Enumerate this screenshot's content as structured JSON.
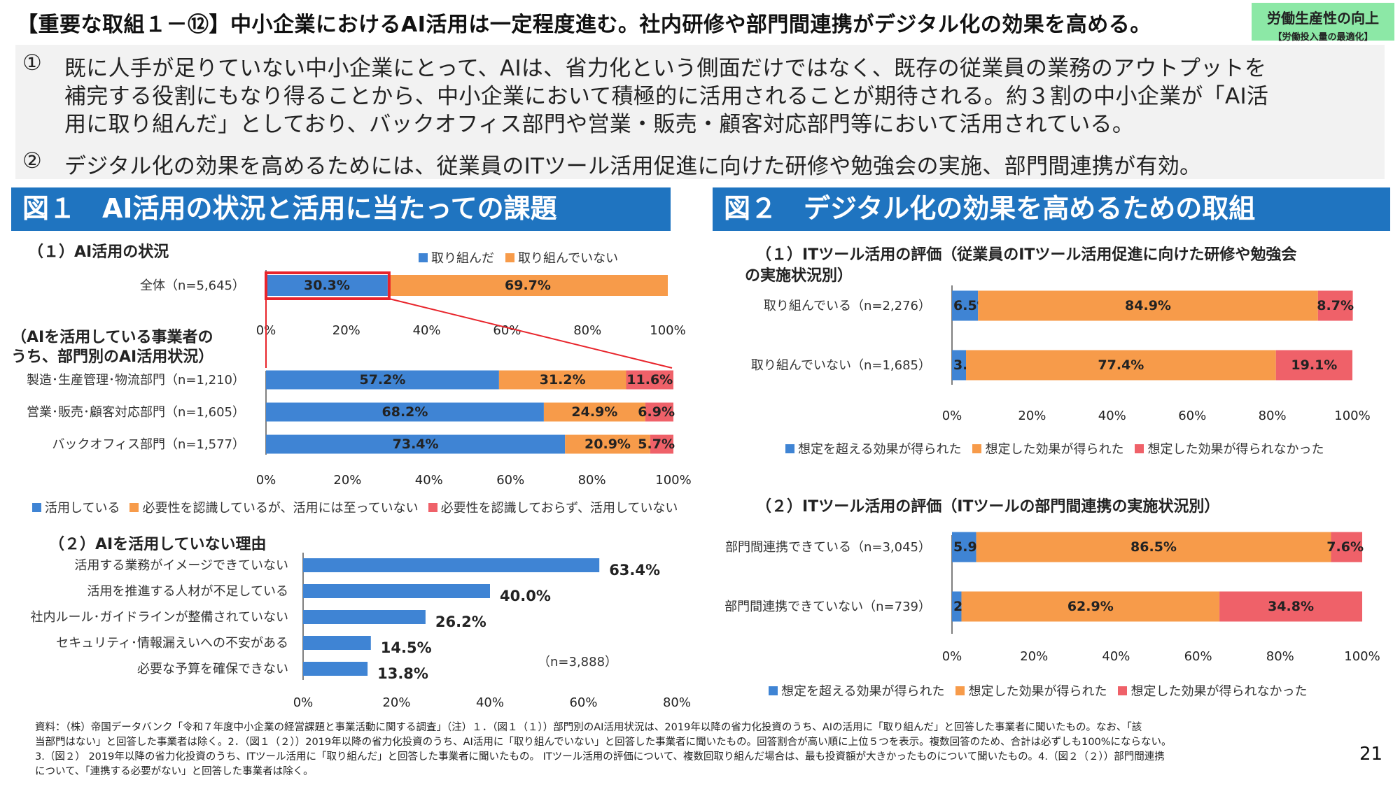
{
  "header": {
    "title": "【重要な取組１－⑫】中小企業におけるAI活用は一定程度進む。社内研修や部門間連携がデジタル化の効果を高める。",
    "badge_main": "労働生産性の向上",
    "badge_sub": "【労働投入量の最適化】"
  },
  "summary": {
    "p1_num": "①",
    "p1_lines": [
      "既に人手が足りていない中小企業にとって、AIは、省力化という側面だけではなく、既存の従業員の業務のアウトプットを",
      "補完する役割にもなり得ることから、中小企業において積極的に活用されることが期待される。約３割の中小企業が「AI活",
      "用に取り組んだ」としており、バックオフィス部門や営業・販売・顧客対応部門等において活用されている。"
    ],
    "p2_num": "②",
    "p2_line": "デジタル化の効果を高めるためには、従業員のITツール活用促進に向けた研修や勉強会の実施、部門間連携が有効。"
  },
  "fig1": {
    "heading": "図１　AI活用の状況と活用に当たっての課題",
    "sub1": "（１）AI活用の状況",
    "sub1_legend": [
      "取り組んだ",
      "取り組んでいない"
    ],
    "sub1_title2_line1": "（AIを活用している事業者の",
    "sub1_title2_line2": "うち、部門別のAI活用状況）",
    "sub1_legend2": [
      "活用している",
      "必要性を認識しているが、活用には至っていない",
      "必要性を認識しておらず、活用していない"
    ],
    "sub2": "（２）AIを活用していない理由",
    "sub2_n": "（n=3,888）"
  },
  "fig2": {
    "heading": "図２　デジタル化の効果を高めるための取組",
    "sub1_line1": "（１）ITツール活用の評価（従業員のITツール活用促進に向けた研修や勉強会",
    "sub1_line2": "の実施状況別）",
    "sub2": "（２）ITツール活用の評価（ITツールの部門間連携の実施状況別）",
    "legend": [
      "想定を超える効果が得られた",
      "想定した効果が得られた",
      "想定した効果が得られなかった"
    ]
  },
  "colors": {
    "blue": "#3f84d4",
    "orange": "#f79b4a",
    "red": "#ef6169",
    "header_blue": "#1f74c0",
    "badge_green": "#8ce8a6",
    "highlight": "#e8242b"
  },
  "chart_data": [
    {
      "id": "ai_overall",
      "type": "bar",
      "orientation": "horizontal-stacked",
      "categories": [
        "全体（n=5,645）"
      ],
      "series": [
        {
          "name": "取り組んだ",
          "values": [
            30.3
          ]
        },
        {
          "name": "取り組んでいない",
          "values": [
            69.7
          ]
        }
      ],
      "xlim": [
        0,
        100
      ],
      "ticks": [
        "0%",
        "20%",
        "40%",
        "60%",
        "80%",
        "100%"
      ]
    },
    {
      "id": "ai_by_department",
      "type": "bar",
      "orientation": "horizontal-stacked",
      "categories": [
        "製造･生産管理･物流部門（n=1,210）",
        "営業･販売･顧客対応部門（n=1,605）",
        "バックオフィス部門（n=1,577）"
      ],
      "series": [
        {
          "name": "活用している",
          "values": [
            57.2,
            68.2,
            73.4
          ]
        },
        {
          "name": "必要性を認識しているが、活用には至っていない",
          "values": [
            31.2,
            24.9,
            20.9
          ]
        },
        {
          "name": "必要性を認識しておらず、活用していない",
          "values": [
            11.6,
            6.9,
            5.7
          ]
        }
      ],
      "xlim": [
        0,
        100
      ],
      "ticks": [
        "0%",
        "20%",
        "40%",
        "60%",
        "80%",
        "100%"
      ]
    },
    {
      "id": "ai_not_used_reasons",
      "type": "bar",
      "orientation": "horizontal",
      "categories": [
        "活用する業務がイメージできていない",
        "活用を推進する人材が不足している",
        "社内ルール･ガイドラインが整備されていない",
        "セキュリティ･情報漏えいへの不安がある",
        "必要な予算を確保できない"
      ],
      "values": [
        63.4,
        40.0,
        26.2,
        14.5,
        13.8
      ],
      "labels": [
        "63.4%",
        "40.0%",
        "26.2%",
        "14.5%",
        "13.8%"
      ],
      "xlim": [
        0,
        80
      ],
      "ticks": [
        "0%",
        "20%",
        "40%",
        "60%",
        "80%"
      ]
    },
    {
      "id": "it_training",
      "type": "bar",
      "orientation": "horizontal-stacked",
      "categories": [
        "取り組んでいる（n=2,276）",
        "取り組んでいない（n=1,685）"
      ],
      "series": [
        {
          "name": "想定を超える効果が得られた",
          "values": [
            6.5,
            3.5
          ]
        },
        {
          "name": "想定した効果が得られた",
          "values": [
            84.9,
            77.4
          ]
        },
        {
          "name": "想定した効果が得られなかった",
          "values": [
            8.7,
            19.1
          ]
        }
      ],
      "xlim": [
        0,
        100
      ],
      "ticks": [
        "0%",
        "20%",
        "40%",
        "60%",
        "80%",
        "100%"
      ]
    },
    {
      "id": "it_cross_department",
      "type": "bar",
      "orientation": "horizontal-stacked",
      "categories": [
        "部門間連携できている（n=3,045）",
        "部門間連携できていない（n=739）"
      ],
      "series": [
        {
          "name": "想定を超える効果が得られた",
          "values": [
            5.9,
            2.3
          ]
        },
        {
          "name": "想定した効果が得られた",
          "values": [
            86.5,
            62.9
          ]
        },
        {
          "name": "想定した効果が得られなかった",
          "values": [
            7.6,
            34.8
          ]
        }
      ],
      "xlim": [
        0,
        100
      ],
      "ticks": [
        "0%",
        "20%",
        "40%",
        "60%",
        "80%",
        "100%"
      ]
    }
  ],
  "footer": {
    "lines": [
      "資料：（株）帝国データバンク「令和７年度中小企業の経営課題と事業活動に関する調査」（注）１．（図１（１））部門別のAI活用状況は、2019年以降の省力化投資のうち、AIの活用に「取り組んだ」と回答した事業者に聞いたもの。なお、「該",
      "当部門はない」と回答した事業者は除く。2．（図１（２））2019年以降の省力化投資のうち、AI活用に「取り組んでいない」と回答した事業者に聞いたもの。回答割合が高い順に上位５つを表示。複数回答のため、合計は必ずしも100%にならない。",
      "3.（図２） 2019年以降の省力化投資のうち、ITツール活用に「取り組んだ」と回答した事業者に聞いたもの。 ITツール活用の評価について、複数回取り組んだ場合は、最も投資額が大きかったものについて聞いたもの。4.（図２（２））部門間連携",
      "について、「連携する必要がない」と回答した事業者は除く。"
    ],
    "page_number": "21"
  }
}
